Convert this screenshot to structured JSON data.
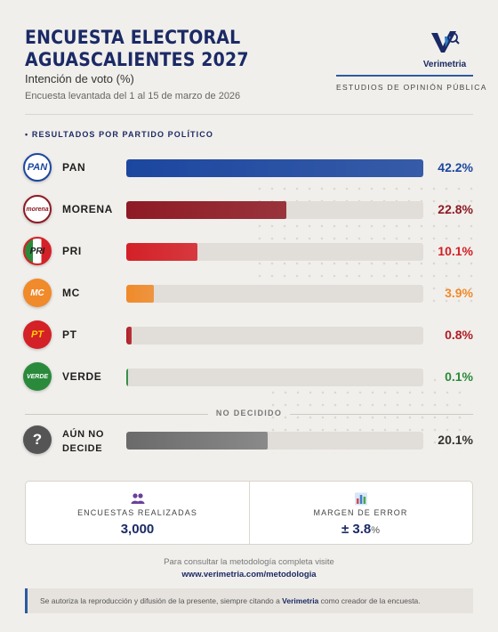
{
  "header": {
    "title_line1": "ENCUESTA ELECTORAL",
    "title_line2": "AGUASCALIENTES 2027",
    "subtitle": "Intención de voto (%)",
    "dateline": "Encuesta levantada del 1 al 15 de marzo de 2026",
    "brand": "Verimetria",
    "tagline": "ESTUDIOS DE OPINIÓN PÚBLICA"
  },
  "section_label": "• RESULTADOS POR PARTIDO POLÍTICO",
  "chart_data": {
    "type": "bar",
    "orientation": "horizontal",
    "categories": [
      "PAN",
      "MORENA",
      "PRI",
      "MC",
      "PT",
      "VERDE"
    ],
    "values": [
      42.2,
      22.8,
      10.1,
      3.9,
      0.8,
      0.1
    ],
    "value_labels": [
      "42.2%",
      "22.8%",
      "10.1%",
      "3.9%",
      "0.8%",
      "0.1%"
    ],
    "colors": [
      "#1c47a0",
      "#8e1a24",
      "#d42027",
      "#f08a2a",
      "#b01d25",
      "#2a8a3c"
    ],
    "xlim": [
      0,
      42.2
    ],
    "undecided": {
      "label_line1": "AÚN NO",
      "label_line2": "DECIDE",
      "value": 20.1,
      "value_label": "20.1%",
      "color": "#6a6a6a"
    }
  },
  "party_logos": {
    "PAN": "PAN",
    "MORENA": "morena",
    "PRI": "PRI",
    "MC": "MC",
    "PT": "PT",
    "VERDE": "VERDE"
  },
  "undecided_divider": "NO DECIDIDO",
  "question_icon": "?",
  "stats": {
    "surveys_label": "ENCUESTAS REALIZADAS",
    "surveys_value": "3,000",
    "surveys_icon": "people-icon",
    "margin_label": "MARGEN DE ERROR",
    "margin_value": "± 3.8",
    "margin_unit": "%",
    "margin_icon": "bar-chart-icon"
  },
  "footer": {
    "note": "Para consultar la metodología completa visite",
    "link": "www.verimetria.com/metodologia",
    "notice_pre": "Se autoriza la reproducción y difusión de la presente, siempre citando a ",
    "notice_brand": "Verimetria",
    "notice_post": " como creador de la encuesta."
  }
}
